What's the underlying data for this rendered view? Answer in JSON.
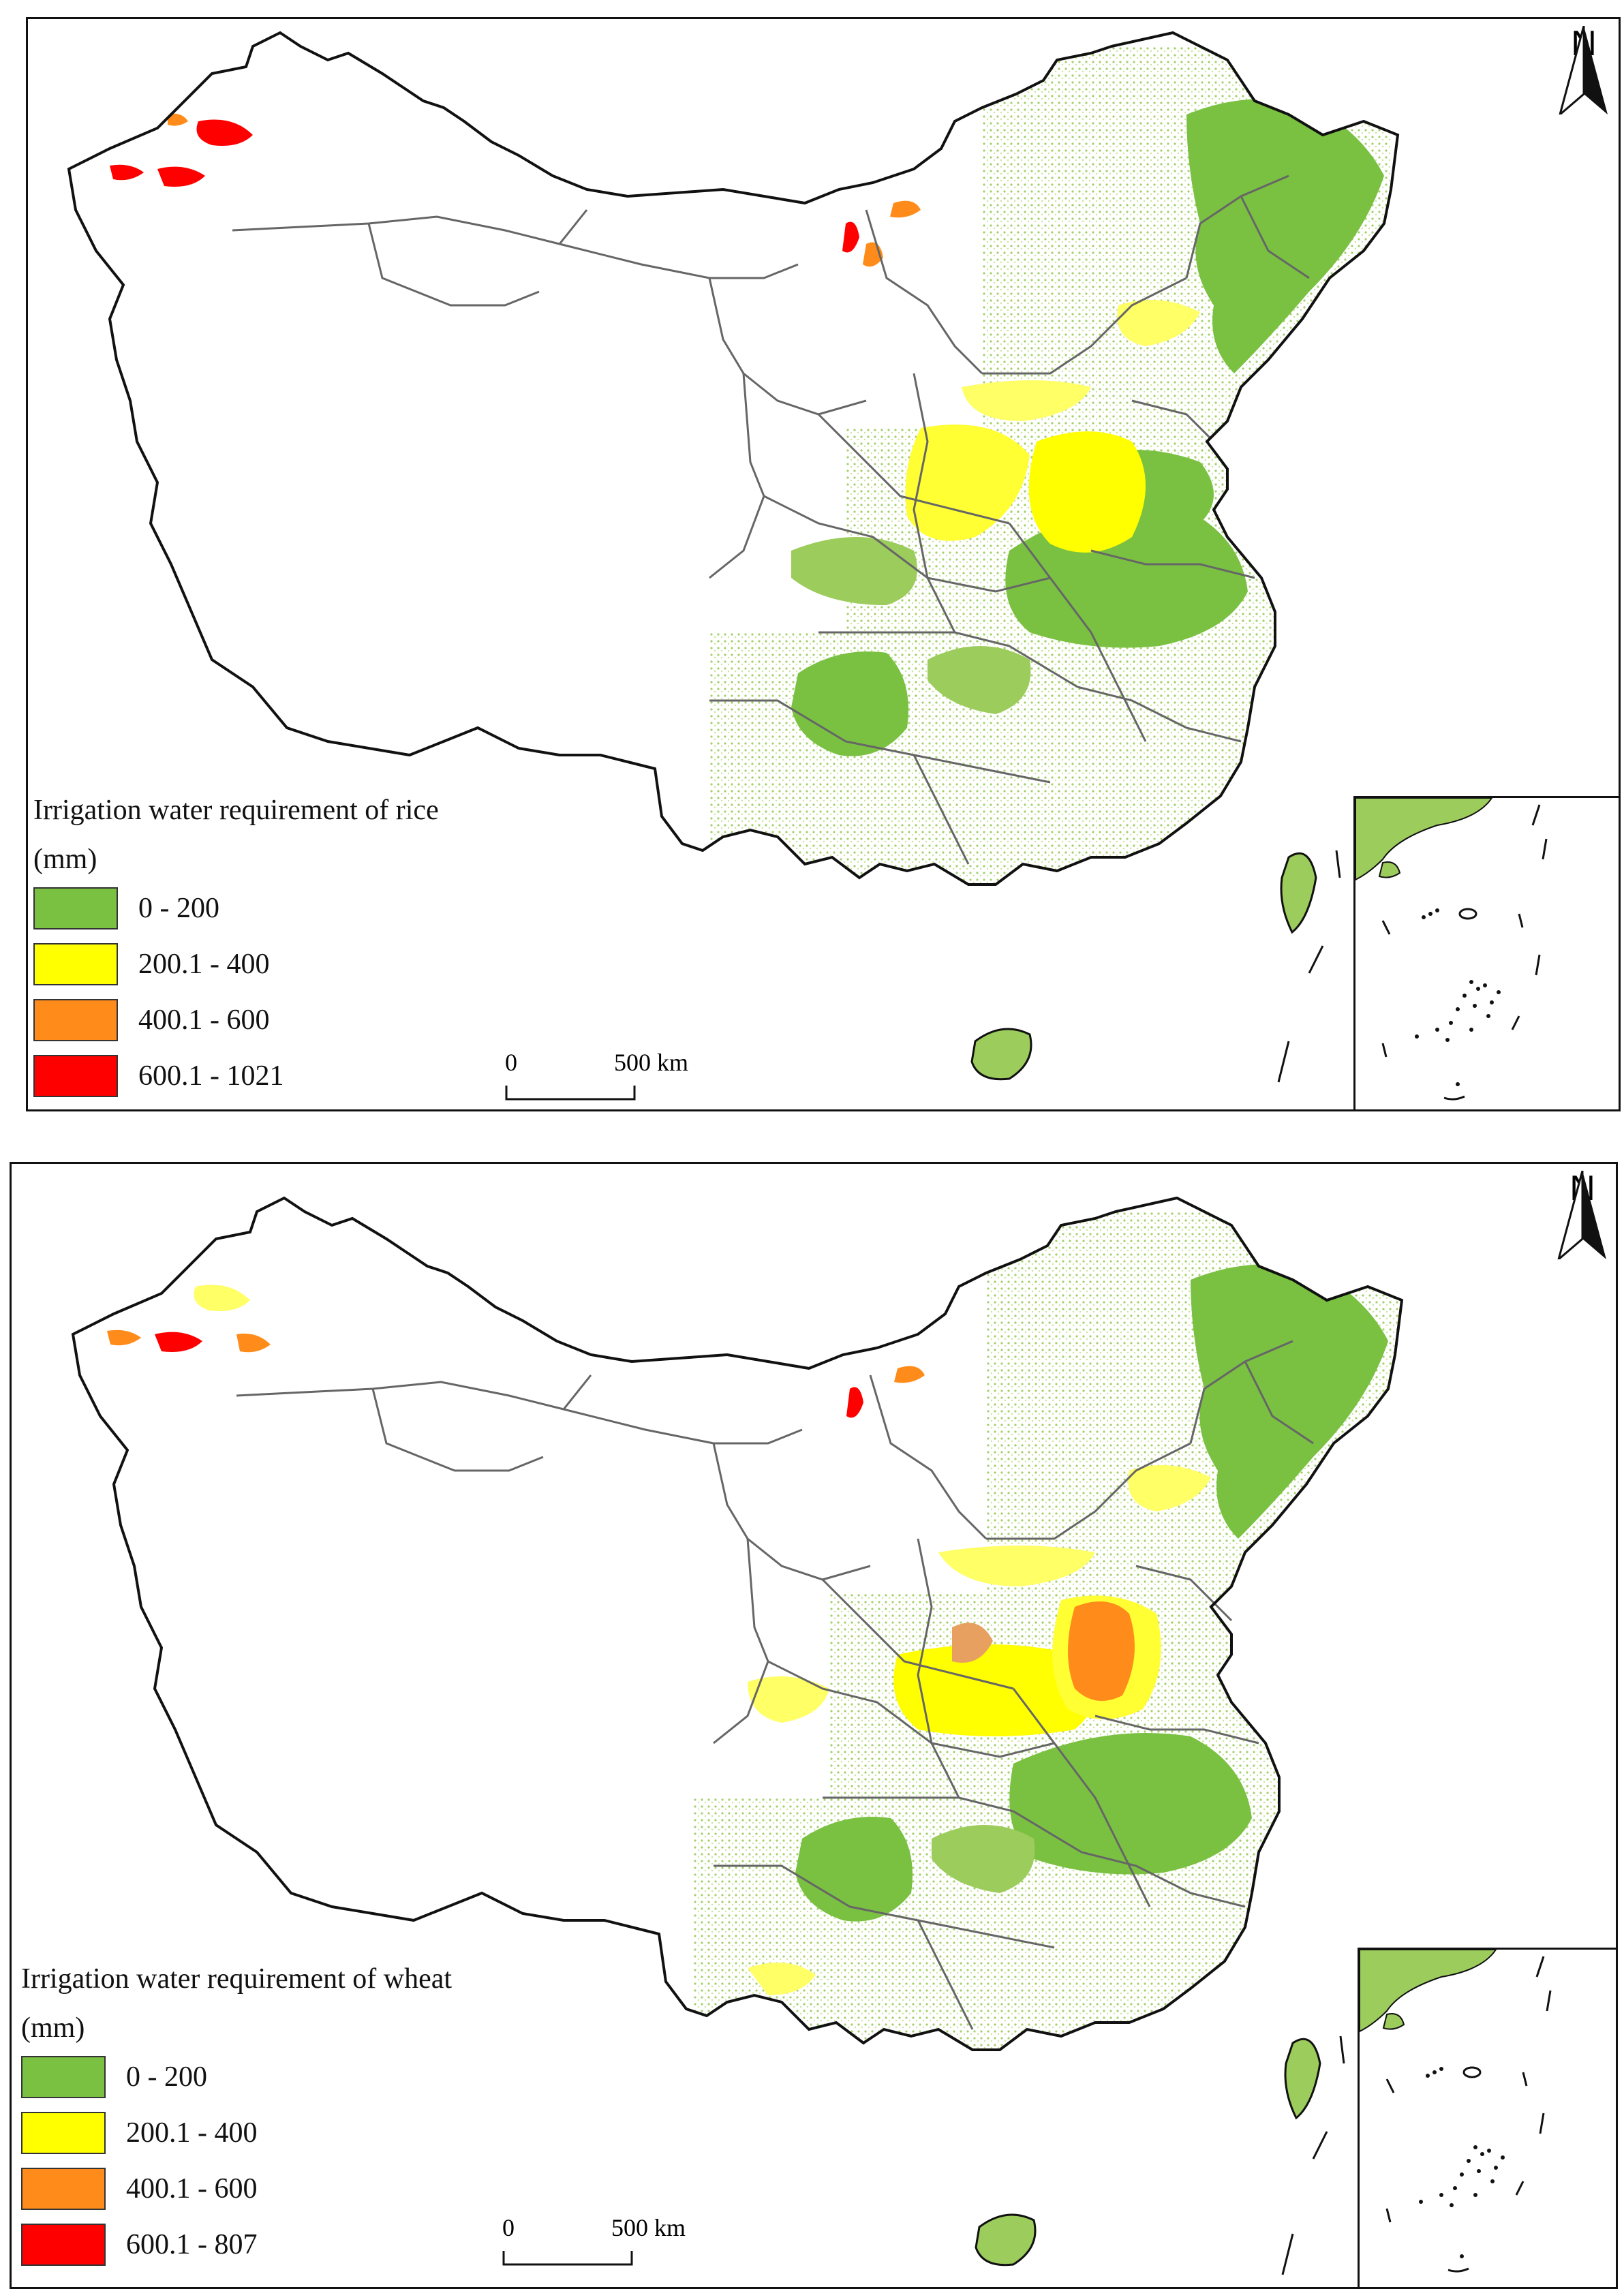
{
  "colors": {
    "class_0_200": "#7ac142",
    "class_200_400": "#ffff00",
    "class_400_600": "#ff8c1a",
    "class_600_max": "#ff0000",
    "border": "#111111",
    "province_line": "#666666"
  },
  "maps": [
    {
      "crop": "rice",
      "legend": {
        "title": "Irrigation water requirement of rice",
        "unit": "(mm)",
        "classes": [
          {
            "label": "0 - 200",
            "color": "#7ac142"
          },
          {
            "label": "200.1 - 400",
            "color": "#ffff00"
          },
          {
            "label": "400.1 - 600",
            "color": "#ff8c1a"
          },
          {
            "label": "600.1 - 1021",
            "color": "#ff0000"
          }
        ]
      },
      "scale_bar": {
        "zero": "0",
        "length": "500 km"
      },
      "north_arrow": {
        "letter": "N"
      }
    },
    {
      "crop": "wheat",
      "legend": {
        "title": "Irrigation water requirement of wheat",
        "unit": "(mm)",
        "classes": [
          {
            "label": "0 - 200",
            "color": "#7ac142"
          },
          {
            "label": "200.1 - 400",
            "color": "#ffff00"
          },
          {
            "label": "400.1 - 600",
            "color": "#ff8c1a"
          },
          {
            "label": "600.1 - 807",
            "color": "#ff0000"
          }
        ]
      },
      "scale_bar": {
        "zero": "0",
        "length": "500 km"
      },
      "north_arrow": {
        "letter": "N"
      }
    }
  ]
}
